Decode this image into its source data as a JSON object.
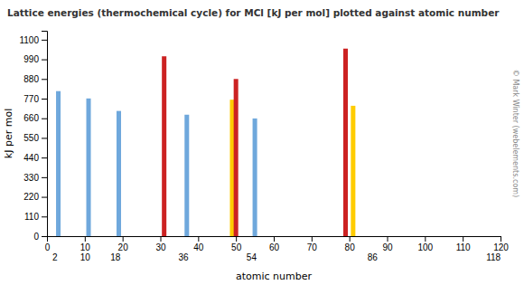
{
  "chart_data": {
    "type": "bar",
    "title": "Lattice energies (thermochemical cycle) for MCl [kJ per mol] plotted against atomic number",
    "xlabel": "atomic number",
    "ylabel": "kJ per mol",
    "x": [
      3,
      11,
      19,
      31,
      37,
      49,
      50,
      55,
      79,
      81
    ],
    "values": [
      812,
      771,
      701,
      1007,
      680,
      764,
      880,
      659,
      1050,
      730
    ],
    "colors": [
      "#6fa8dc",
      "#6fa8dc",
      "#6fa8dc",
      "#cc2222",
      "#6fa8dc",
      "#ffcc00",
      "#cc2222",
      "#6fa8dc",
      "#cc2222",
      "#ffcc00"
    ],
    "xlim": [
      0,
      120
    ],
    "xticks": [
      0,
      10,
      20,
      30,
      40,
      50,
      60,
      70,
      80,
      90,
      100,
      110,
      120
    ],
    "x2lim": [
      0,
      120
    ],
    "x2ticks": [
      2,
      10,
      18,
      36,
      54,
      86,
      118
    ],
    "ylim": [
      0,
      1150
    ],
    "yticks": [
      0,
      110,
      220,
      330,
      440,
      550,
      660,
      770,
      880,
      990,
      1100
    ],
    "grid": false,
    "annotations": [
      "© Mark Winter (webelements.com)"
    ]
  }
}
